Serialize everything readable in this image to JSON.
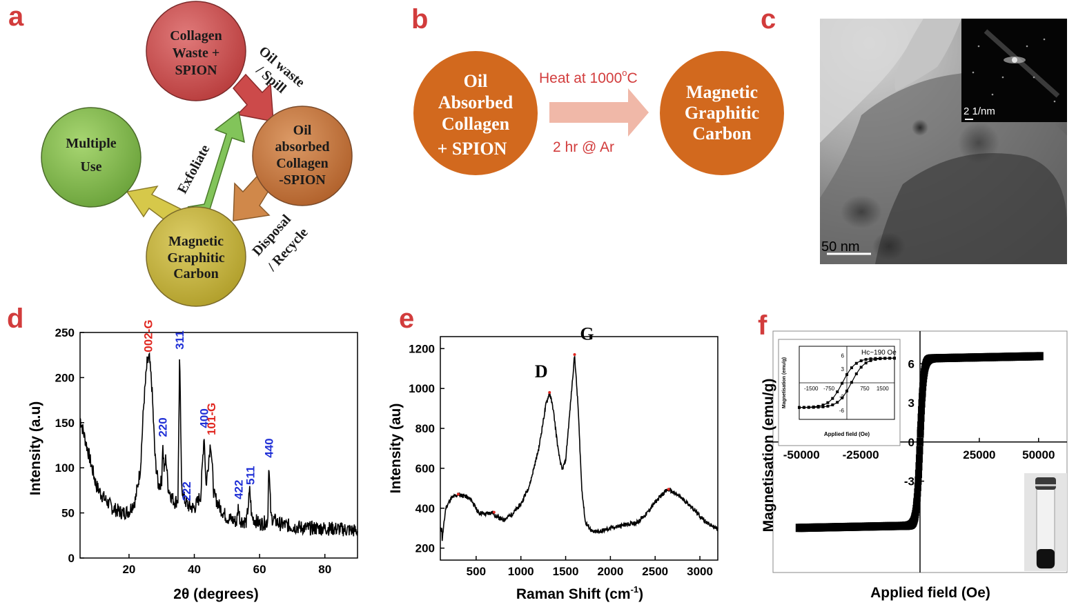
{
  "panels": {
    "a": {
      "letter": "a",
      "circles": [
        {
          "lines": [
            "Collagen",
            "Waste +",
            "SPION"
          ],
          "color": "#cc4a4a"
        },
        {
          "lines": [
            "Oil",
            "absorbed",
            "Collagen",
            "-SPION"
          ],
          "color": "#c0703a"
        },
        {
          "lines": [
            "Magnetic",
            "Graphitic",
            "Carbon"
          ],
          "color": "#c2b13a"
        },
        {
          "lines": [
            "Multiple",
            "Use"
          ],
          "color": "#82b94a"
        }
      ],
      "arrow_labels": {
        "oil_waste": [
          "Oil waste",
          "/ Spill"
        ],
        "disposal": [
          "Disposal",
          "/ Recycle"
        ],
        "exfoliate": "Exfoliate"
      }
    },
    "b": {
      "letter": "b",
      "left_circle": [
        "Oil",
        "Absorbed",
        "Collagen",
        "+ SPION"
      ],
      "right_circle": [
        "Magnetic",
        "Graphitic",
        "Carbon"
      ],
      "arrow_top": "Heat at 1000",
      "arrow_top_unit": "C",
      "arrow_top_sup": "o",
      "arrow_bottom": "2 hr @ Ar",
      "circle_color": "#d2691e"
    },
    "c": {
      "letter": "c",
      "scale_bar": "50 nm",
      "inset_label": "2 1/nm"
    },
    "d": {
      "letter": "d"
    },
    "e": {
      "letter": "e"
    },
    "f": {
      "letter": "f"
    }
  },
  "chart_data": [
    {
      "type": "line",
      "panel": "d",
      "xlabel": "2θ (degrees)",
      "ylabel": "Intensity (a.u)",
      "xlim": [
        5,
        90
      ],
      "ylim": [
        0,
        250
      ],
      "xticks": [
        20,
        40,
        60,
        80
      ],
      "yticks": [
        0,
        50,
        100,
        150,
        200,
        250
      ],
      "baseline_points": [
        [
          5,
          155
        ],
        [
          8,
          110
        ],
        [
          10,
          80
        ],
        [
          12,
          68
        ],
        [
          15,
          55
        ],
        [
          18,
          50
        ],
        [
          20,
          52
        ],
        [
          22,
          65
        ],
        [
          23.5,
          100
        ],
        [
          24.5,
          170
        ],
        [
          25.5,
          215
        ],
        [
          26.2,
          222
        ],
        [
          27,
          190
        ],
        [
          28,
          110
        ],
        [
          29,
          80
        ],
        [
          30,
          85
        ],
        [
          30.3,
          128
        ],
        [
          30.8,
          95
        ],
        [
          31.3,
          112
        ],
        [
          32,
          78
        ],
        [
          33,
          68
        ],
        [
          34,
          62
        ],
        [
          35,
          65
        ],
        [
          35.5,
          225
        ],
        [
          36.1,
          80
        ],
        [
          37,
          65
        ],
        [
          38,
          58
        ],
        [
          40,
          55
        ],
        [
          42,
          70
        ],
        [
          43,
          138
        ],
        [
          43.6,
          80
        ],
        [
          45,
          130
        ],
        [
          46,
          70
        ],
        [
          48,
          55
        ],
        [
          50,
          45
        ],
        [
          53,
          40
        ],
        [
          53.5,
          58
        ],
        [
          54,
          42
        ],
        [
          56,
          40
        ],
        [
          57,
          75
        ],
        [
          57.6,
          45
        ],
        [
          60,
          38
        ],
        [
          62.5,
          40
        ],
        [
          62.8,
          105
        ],
        [
          63.5,
          45
        ],
        [
          66,
          38
        ],
        [
          70,
          35
        ],
        [
          75,
          33
        ],
        [
          80,
          33
        ],
        [
          85,
          32
        ],
        [
          90,
          30
        ]
      ],
      "peak_labels": [
        {
          "x": 25.8,
          "y": 225,
          "text": "002-G",
          "color": "#e0261f"
        },
        {
          "x": 35.5,
          "y": 228,
          "text": "311",
          "color": "#1f2fd6"
        },
        {
          "x": 30.3,
          "y": 131,
          "text": "220",
          "color": "#1f2fd6"
        },
        {
          "x": 43.0,
          "y": 141,
          "text": "400",
          "color": "#1f2fd6"
        },
        {
          "x": 45.2,
          "y": 133,
          "text": "101-G",
          "color": "#e0261f"
        },
        {
          "x": 37.6,
          "y": 60,
          "text": "222",
          "color": "#1f2fd6"
        },
        {
          "x": 53.5,
          "y": 62,
          "text": "422",
          "color": "#1f2fd6"
        },
        {
          "x": 57.1,
          "y": 78,
          "text": "511",
          "color": "#1f2fd6"
        },
        {
          "x": 62.8,
          "y": 108,
          "text": "440",
          "color": "#1f2fd6"
        }
      ]
    },
    {
      "type": "line",
      "panel": "e",
      "xlabel": "Raman Shift (cm",
      "xlabel_sup": "-1",
      "xlabel_end": ")",
      "ylabel": "Intensity (au)",
      "xlim": [
        100,
        3200
      ],
      "ylim": [
        140,
        1260
      ],
      "xticks": [
        500,
        1000,
        1500,
        2000,
        2500,
        3000
      ],
      "yticks": [
        200,
        400,
        600,
        800,
        1000,
        1200
      ],
      "baseline_points": [
        [
          120,
          240
        ],
        [
          160,
          400
        ],
        [
          220,
          450
        ],
        [
          300,
          470
        ],
        [
          380,
          460
        ],
        [
          450,
          440
        ],
        [
          520,
          380
        ],
        [
          600,
          370
        ],
        [
          680,
          380
        ],
        [
          720,
          360
        ],
        [
          800,
          340
        ],
        [
          900,
          370
        ],
        [
          1000,
          420
        ],
        [
          1100,
          520
        ],
        [
          1200,
          700
        ],
        [
          1280,
          920
        ],
        [
          1320,
          980
        ],
        [
          1360,
          900
        ],
        [
          1420,
          680
        ],
        [
          1460,
          590
        ],
        [
          1500,
          640
        ],
        [
          1550,
          900
        ],
        [
          1600,
          1170
        ],
        [
          1640,
          900
        ],
        [
          1680,
          500
        ],
        [
          1720,
          330
        ],
        [
          1800,
          280
        ],
        [
          1900,
          285
        ],
        [
          2000,
          300
        ],
        [
          2100,
          310
        ],
        [
          2200,
          320
        ],
        [
          2300,
          330
        ],
        [
          2400,
          370
        ],
        [
          2500,
          430
        ],
        [
          2600,
          480
        ],
        [
          2650,
          495
        ],
        [
          2700,
          480
        ],
        [
          2800,
          450
        ],
        [
          2900,
          410
        ],
        [
          3000,
          360
        ],
        [
          3100,
          320
        ],
        [
          3200,
          295
        ]
      ],
      "peak_labels": [
        {
          "x": 1320,
          "y": 1000,
          "text": "D"
        },
        {
          "x": 1600,
          "y": 1190,
          "text": "G"
        }
      ]
    },
    {
      "type": "scatter",
      "panel": "f",
      "xlabel": "Applied field (Oe)",
      "ylabel": "Magnetisation (emu/g)",
      "xlim": [
        -62000,
        62000
      ],
      "ylim": [
        -10,
        8.5
      ],
      "xticks": [
        -50000,
        -25000,
        25000,
        50000
      ],
      "yticks": [
        -3,
        0,
        3,
        6
      ],
      "saturation": 6.4,
      "inset": {
        "xlabel": "Applied field (Oe)",
        "ylabel": "Magnetisation (emu/g)",
        "annotation": "Hc~190 Oe",
        "xticks": [
          -1500,
          -750,
          750,
          1500
        ],
        "yticks": [
          -6,
          -3,
          3,
          6
        ]
      }
    }
  ]
}
